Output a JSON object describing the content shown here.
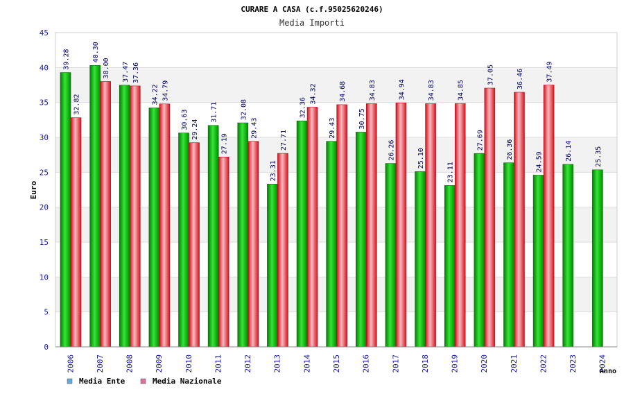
{
  "chart_data": {
    "type": "bar",
    "title": "CURARE A CASA (c.f.95025620246)",
    "subtitle": "Media Importi",
    "ylabel": "Euro",
    "xlabel": "Anno",
    "ylim": [
      0,
      45
    ],
    "yticks": [
      0,
      5,
      10,
      15,
      20,
      25,
      30,
      35,
      40,
      45
    ],
    "grid": true,
    "legend_position": "bottom-left",
    "categories": [
      "2006",
      "2007",
      "2008",
      "2009",
      "2010",
      "2011",
      "2012",
      "2013",
      "2014",
      "2015",
      "2016",
      "2017",
      "2018",
      "2019",
      "2020",
      "2021",
      "2022",
      "2023",
      "2024"
    ],
    "series": [
      {
        "name": "Media Ente",
        "bar_color": "#00b000",
        "legend_color": "#66a8e0",
        "values": [
          39.28,
          40.3,
          37.47,
          34.22,
          30.63,
          31.71,
          32.08,
          23.31,
          32.36,
          29.43,
          30.75,
          26.26,
          25.1,
          23.11,
          27.69,
          26.36,
          24.59,
          26.14,
          25.35
        ],
        "labels": [
          "39.28",
          "40.30",
          "37.47",
          "34.22",
          "30.63",
          "31.71",
          "32.08",
          "23.31",
          "32.36",
          "29.43",
          "30.75",
          "26.26",
          "25.10",
          "23.11",
          "27.69",
          "26.36",
          "24.59",
          "26.14",
          "25.35"
        ]
      },
      {
        "name": "Media Nazionale",
        "bar_color": "#e0202a",
        "legend_color": "#e070a0",
        "values": [
          32.82,
          38.0,
          37.36,
          34.79,
          29.24,
          27.19,
          29.43,
          27.71,
          34.32,
          34.68,
          34.83,
          34.94,
          34.83,
          34.85,
          37.05,
          36.46,
          37.49,
          null,
          null
        ],
        "labels": [
          "32.82",
          "38.00",
          "37.36",
          "34.79",
          "29.24",
          "27.19",
          "29.43",
          "27.71",
          "34.32",
          "34.68",
          "34.83",
          "34.94",
          "34.83",
          "34.85",
          "37.05",
          "36.46",
          "37.49",
          null,
          null
        ]
      }
    ]
  }
}
